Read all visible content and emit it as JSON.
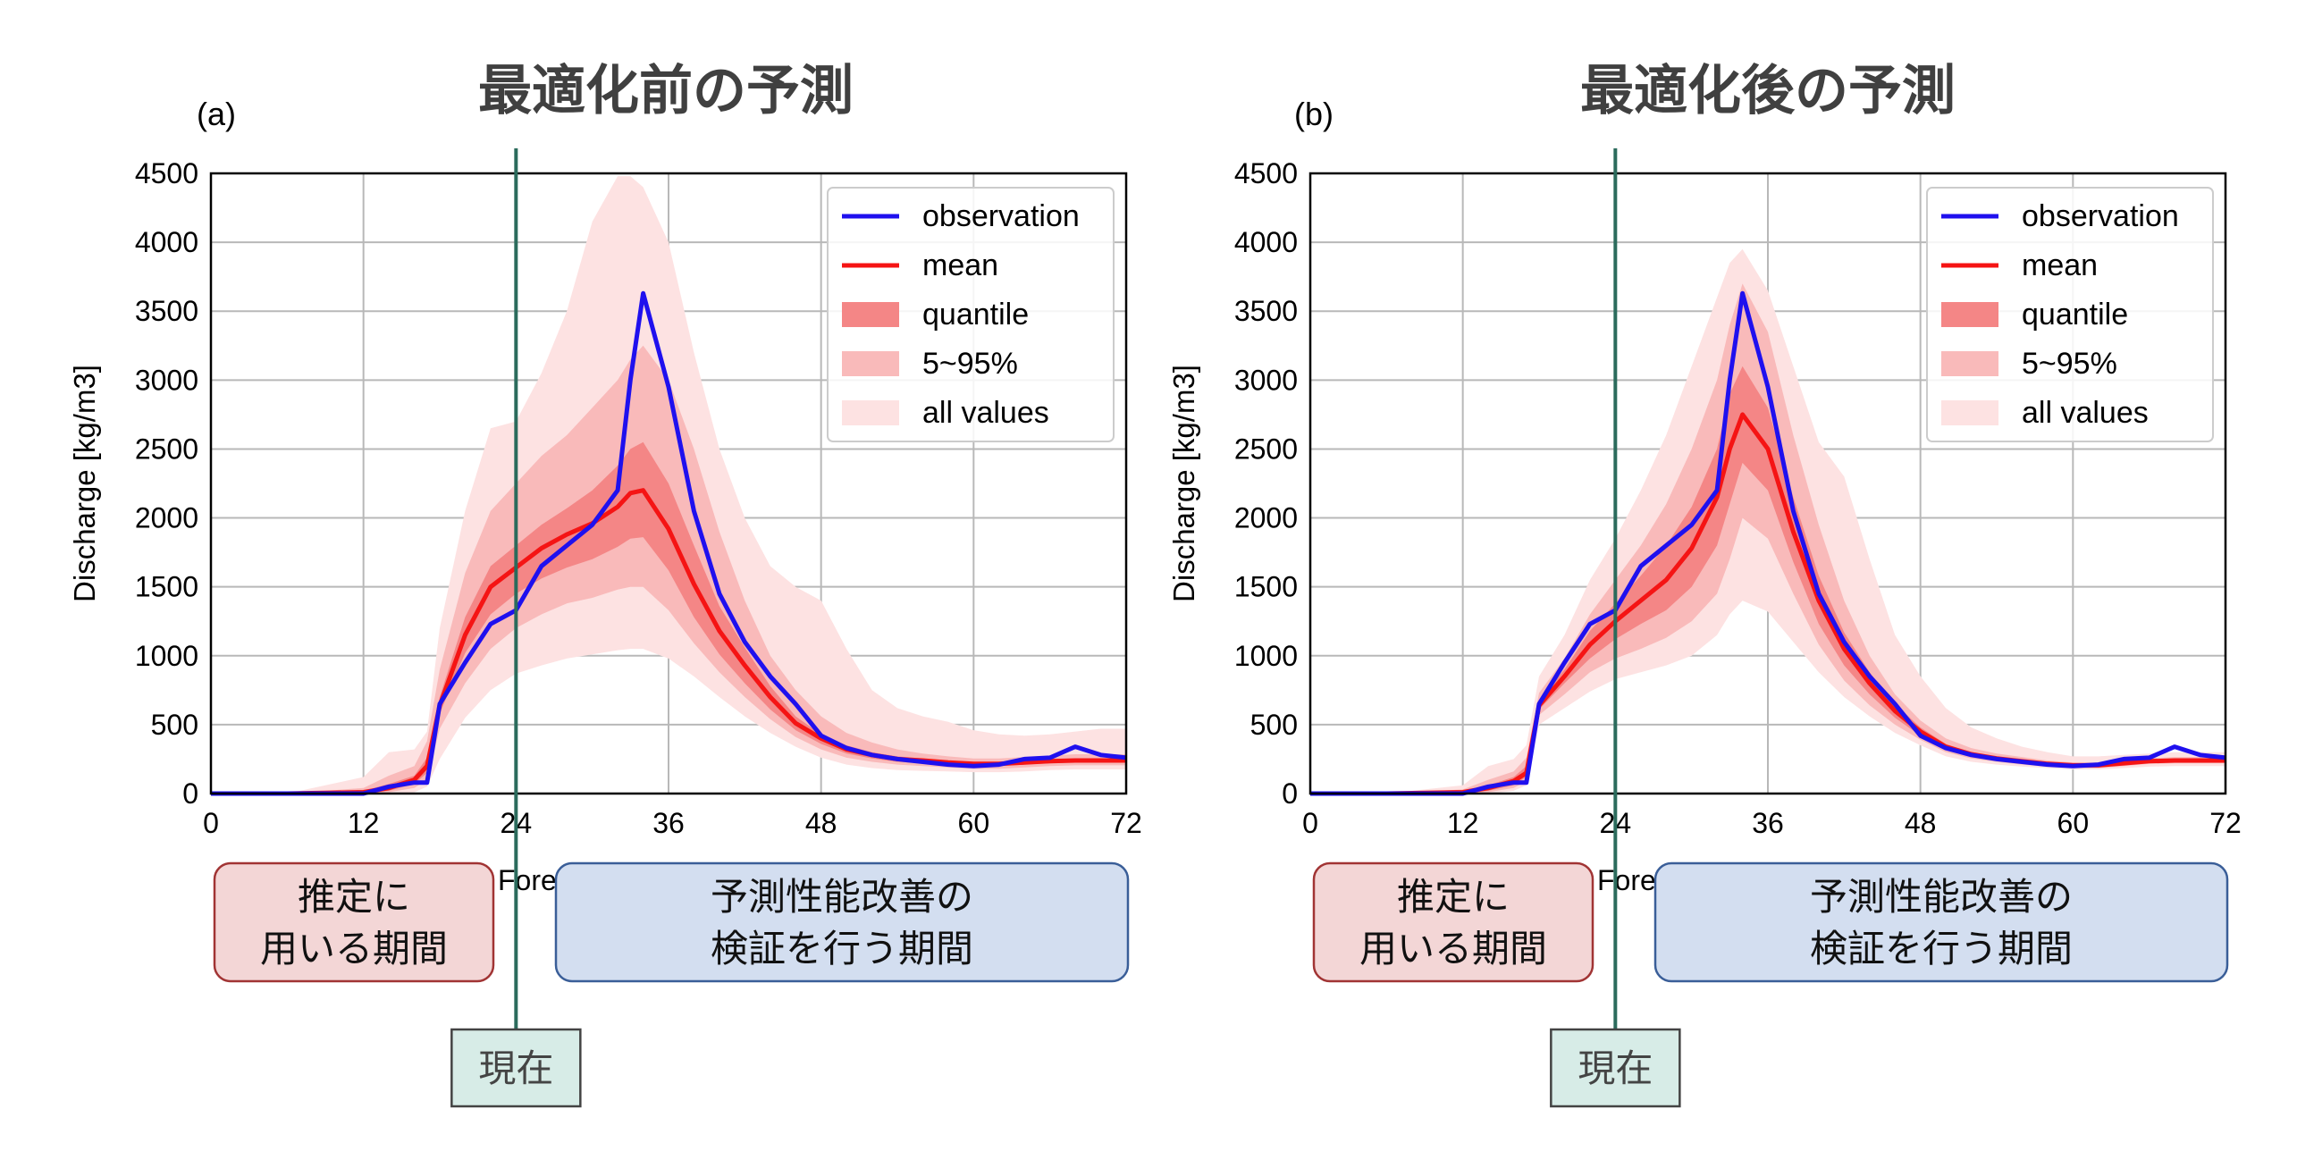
{
  "shared": {
    "xlabel_visible": "Fore",
    "ylabel": "Discharge [kg/m3]",
    "x_ticks": [
      "0",
      "12",
      "24",
      "36",
      "48",
      "60",
      "72"
    ],
    "y_ticks": [
      "0",
      "500",
      "1000",
      "1500",
      "2000",
      "2500",
      "3000",
      "3500",
      "4000",
      "4500"
    ],
    "legend": [
      "observation",
      "mean",
      "quantile",
      "5~95%",
      "all values"
    ],
    "box_estimation": [
      "推定に",
      "用いる期間"
    ],
    "box_verification": [
      "予測性能改善の",
      "検証を行う期間"
    ],
    "now_label": "現在",
    "now_x": 24,
    "colors": {
      "observation": "#1f10ee",
      "mean": "#f51414",
      "quantile": "#f48686",
      "p5_95": "#f9baba",
      "all": "#fde2e2",
      "now_line": "#2b6b5c",
      "box_estimation_fill": "#f3d6d6",
      "box_estimation_edge": "#a13434",
      "box_verification_fill": "#d3def0",
      "box_verification_edge": "#3a5e98",
      "now_fill": "#d7ece7",
      "now_edge": "#434343"
    }
  },
  "chart_data": [
    {
      "panel": "(a)",
      "title": "最適化前の予測",
      "type": "line",
      "xlabel": "Fore",
      "ylabel": "Discharge [kg/m3]",
      "xlim": [
        0,
        72
      ],
      "ylim": [
        0,
        4500
      ],
      "grid": true,
      "legend_position": "top-right",
      "x": [
        0,
        6,
        12,
        14,
        16,
        17,
        18,
        20,
        22,
        24,
        26,
        28,
        30,
        32,
        33,
        34,
        36,
        38,
        40,
        42,
        44,
        46,
        48,
        50,
        52,
        54,
        56,
        58,
        60,
        62,
        64,
        66,
        68,
        70,
        72
      ],
      "series": [
        {
          "name": "observation",
          "values": [
            0,
            0,
            0,
            50,
            80,
            80,
            650,
            950,
            1230,
            1330,
            1650,
            1800,
            1950,
            2200,
            3000,
            3630,
            2950,
            2050,
            1450,
            1100,
            850,
            650,
            420,
            330,
            280,
            250,
            230,
            210,
            200,
            210,
            250,
            260,
            340,
            280,
            260
          ]
        },
        {
          "name": "mean",
          "values": [
            0,
            0,
            10,
            40,
            100,
            200,
            640,
            1150,
            1500,
            1640,
            1780,
            1880,
            1960,
            2080,
            2180,
            2200,
            1920,
            1520,
            1180,
            930,
            700,
            510,
            400,
            320,
            280,
            250,
            240,
            225,
            215,
            215,
            225,
            235,
            240,
            240,
            240
          ]
        },
        {
          "name": "quantile_upper",
          "values": [
            0,
            0,
            20,
            70,
            130,
            260,
            700,
            1280,
            1650,
            1800,
            1950,
            2070,
            2200,
            2380,
            2500,
            2550,
            2250,
            1800,
            1360,
            1060,
            780,
            560,
            430,
            350,
            300,
            270,
            255,
            240,
            230,
            230,
            240,
            250,
            255,
            255,
            255
          ]
        },
        {
          "name": "quantile_lower",
          "values": [
            0,
            0,
            0,
            20,
            70,
            150,
            580,
            1020,
            1300,
            1450,
            1560,
            1640,
            1700,
            1790,
            1850,
            1860,
            1620,
            1280,
            1010,
            800,
            610,
            460,
            360,
            290,
            255,
            230,
            220,
            210,
            200,
            200,
            210,
            220,
            225,
            225,
            225
          ]
        },
        {
          "name": "p5_95_upper",
          "values": [
            0,
            0,
            40,
            130,
            200,
            380,
            900,
            1600,
            2050,
            2250,
            2450,
            2600,
            2800,
            3000,
            3150,
            3250,
            3000,
            2500,
            1900,
            1400,
            1000,
            750,
            560,
            440,
            370,
            320,
            290,
            270,
            255,
            255,
            265,
            275,
            285,
            285,
            285
          ]
        },
        {
          "name": "p5_95_lower",
          "values": [
            0,
            0,
            0,
            10,
            40,
            100,
            470,
            800,
            1050,
            1200,
            1300,
            1380,
            1420,
            1480,
            1500,
            1500,
            1330,
            1090,
            880,
            700,
            540,
            410,
            320,
            260,
            230,
            210,
            200,
            190,
            180,
            180,
            190,
            200,
            205,
            205,
            205
          ]
        },
        {
          "name": "all_upper",
          "values": [
            0,
            0,
            120,
            300,
            320,
            450,
            1200,
            2050,
            2650,
            2700,
            3050,
            3500,
            4150,
            4480,
            4480,
            4400,
            4000,
            3200,
            2500,
            2000,
            1650,
            1500,
            1400,
            1050,
            750,
            620,
            560,
            520,
            460,
            430,
            420,
            430,
            450,
            470,
            470
          ]
        },
        {
          "name": "all_lower",
          "values": [
            0,
            0,
            0,
            0,
            10,
            50,
            250,
            550,
            750,
            870,
            930,
            980,
            1010,
            1040,
            1050,
            1050,
            980,
            850,
            700,
            560,
            440,
            340,
            260,
            210,
            185,
            170,
            165,
            160,
            155,
            155,
            160,
            170,
            175,
            175,
            175
          ]
        }
      ]
    },
    {
      "panel": "(b)",
      "title": "最適化後の予測",
      "type": "line",
      "xlabel": "Fore",
      "ylabel": "Discharge [kg/m3]",
      "xlim": [
        0,
        72
      ],
      "ylim": [
        0,
        4500
      ],
      "grid": true,
      "legend_position": "top-right",
      "x": [
        0,
        6,
        12,
        14,
        16,
        17,
        18,
        20,
        22,
        24,
        26,
        28,
        30,
        32,
        33,
        34,
        36,
        38,
        40,
        42,
        44,
        46,
        48,
        50,
        52,
        54,
        56,
        58,
        60,
        62,
        64,
        66,
        68,
        70,
        72
      ],
      "series": [
        {
          "name": "observation",
          "values": [
            0,
            0,
            0,
            50,
            80,
            80,
            650,
            950,
            1230,
            1330,
            1650,
            1800,
            1950,
            2200,
            3000,
            3630,
            2950,
            2050,
            1450,
            1100,
            850,
            650,
            420,
            330,
            280,
            250,
            230,
            210,
            200,
            210,
            250,
            260,
            340,
            280,
            260
          ]
        },
        {
          "name": "mean",
          "values": [
            0,
            0,
            10,
            40,
            90,
            150,
            640,
            850,
            1080,
            1250,
            1400,
            1550,
            1780,
            2150,
            2500,
            2750,
            2500,
            1900,
            1400,
            1050,
            800,
            600,
            450,
            340,
            285,
            255,
            235,
            215,
            205,
            205,
            220,
            235,
            240,
            240,
            240
          ]
        },
        {
          "name": "quantile_upper",
          "values": [
            0,
            0,
            15,
            60,
            120,
            200,
            680,
            900,
            1180,
            1380,
            1580,
            1800,
            2080,
            2500,
            2900,
            3100,
            2800,
            2150,
            1580,
            1170,
            880,
            650,
            480,
            360,
            300,
            265,
            245,
            225,
            215,
            215,
            230,
            245,
            250,
            250,
            250
          ]
        },
        {
          "name": "quantile_lower",
          "values": [
            0,
            0,
            0,
            20,
            60,
            120,
            610,
            800,
            980,
            1120,
            1230,
            1330,
            1500,
            1800,
            2100,
            2400,
            2200,
            1680,
            1230,
            930,
            720,
            550,
            420,
            320,
            270,
            245,
            225,
            205,
            195,
            195,
            210,
            225,
            230,
            230,
            230
          ]
        },
        {
          "name": "p5_95_upper",
          "values": [
            0,
            0,
            30,
            100,
            160,
            260,
            730,
            980,
            1300,
            1550,
            1800,
            2100,
            2500,
            3000,
            3400,
            3700,
            3350,
            2600,
            1950,
            1400,
            1000,
            720,
            530,
            400,
            330,
            290,
            265,
            240,
            225,
            225,
            240,
            255,
            265,
            265,
            265
          ]
        },
        {
          "name": "p5_95_lower",
          "values": [
            0,
            0,
            0,
            10,
            40,
            90,
            570,
            720,
            880,
            980,
            1050,
            1130,
            1250,
            1450,
            1700,
            2000,
            1850,
            1450,
            1080,
            820,
            640,
            500,
            390,
            300,
            255,
            230,
            210,
            195,
            185,
            185,
            200,
            215,
            220,
            220,
            220
          ]
        },
        {
          "name": "all_upper",
          "values": [
            0,
            0,
            60,
            200,
            250,
            350,
            850,
            1150,
            1550,
            1850,
            2200,
            2600,
            3100,
            3600,
            3850,
            3950,
            3650,
            3100,
            2550,
            2300,
            1700,
            1150,
            850,
            620,
            480,
            400,
            340,
            300,
            270,
            270,
            280,
            290,
            300,
            300,
            300
          ]
        },
        {
          "name": "all_lower",
          "values": [
            0,
            0,
            0,
            0,
            20,
            60,
            500,
            620,
            740,
            830,
            880,
            930,
            1000,
            1150,
            1300,
            1400,
            1320,
            1100,
            880,
            700,
            560,
            440,
            350,
            270,
            230,
            210,
            195,
            185,
            175,
            175,
            185,
            195,
            200,
            200,
            200
          ]
        }
      ]
    }
  ]
}
